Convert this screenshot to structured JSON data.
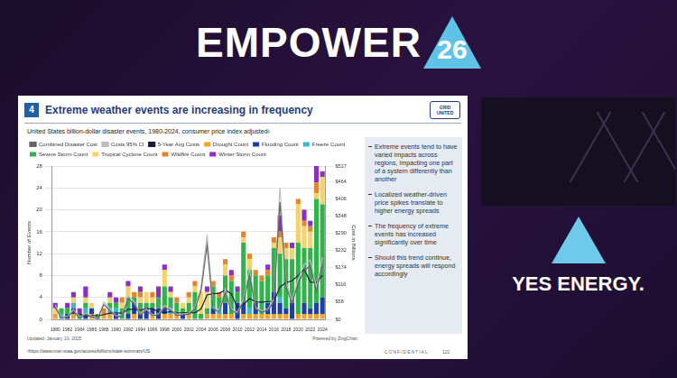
{
  "header": {
    "title": "EMPOWER",
    "number": "26"
  },
  "slide": {
    "number": "4",
    "title": "Extreme weather events are increasing in frequency",
    "logo": "GRID UNITED",
    "bullets": [
      "Extreme events tend to have varied impacts across regions, impacting one part of a system differently than another",
      "Localized weather-driven price spikes translate to higher energy spreads",
      "The frequency of extreme events has increased significantly over time",
      "Should this trend continue, energy spreads will respond accordingly"
    ],
    "updated": "Updated: January 10, 2025",
    "powered": "Powered by ZingChart",
    "footnote": "¹https://www.ncei.noaa.gov/access/billions/state-summary/US",
    "confidential": "CONFIDENTIAL",
    "page": "122"
  },
  "sponsor": "YES ENERGY.",
  "chart_data": {
    "type": "bar",
    "title": "United States billion-dollar disaster events, 1980-2024, consumer price index adjusted¹",
    "y_label": "Number of Events",
    "y2_label": "Cost in Billions",
    "categories": [
      "1980",
      null,
      "1982",
      null,
      "1984",
      null,
      "1986",
      null,
      "1988",
      null,
      "1990",
      null,
      "1992",
      null,
      "1994",
      null,
      "1996",
      null,
      "1998",
      null,
      "2000",
      null,
      "2002",
      null,
      "2004",
      null,
      "2006",
      null,
      "2008",
      null,
      "2010",
      null,
      "2012",
      null,
      "2014",
      null,
      "2016",
      null,
      "2018",
      null,
      "2020",
      null,
      "2022",
      null,
      "2024"
    ],
    "series": [
      {
        "name": "Drought Count",
        "color": "#f0a22e",
        "values": [
          1,
          0,
          0,
          1,
          0,
          0,
          1,
          0,
          1,
          1,
          0,
          0,
          0,
          1,
          0,
          0,
          1,
          0,
          1,
          1,
          1,
          0,
          1,
          0,
          0,
          1,
          1,
          1,
          1,
          1,
          0,
          1,
          1,
          1,
          1,
          1,
          1,
          1,
          1,
          0,
          1,
          1,
          1,
          1,
          1
        ]
      },
      {
        "name": "Flooding Count",
        "color": "#1f3fa8",
        "values": [
          0,
          0,
          1,
          1,
          0,
          1,
          1,
          0,
          0,
          0,
          1,
          0,
          1,
          2,
          1,
          2,
          1,
          2,
          1,
          0,
          0,
          1,
          0,
          0,
          0,
          0,
          1,
          0,
          2,
          0,
          3,
          2,
          0,
          2,
          0,
          2,
          4,
          2,
          1,
          3,
          0,
          2,
          1,
          2,
          3
        ]
      },
      {
        "name": "Freeze Count",
        "color": "#3bb6cf",
        "values": [
          0,
          1,
          0,
          1,
          0,
          1,
          0,
          0,
          0,
          1,
          1,
          0,
          0,
          0,
          0,
          0,
          0,
          0,
          0,
          1,
          0,
          0,
          0,
          0,
          0,
          0,
          0,
          1,
          0,
          0,
          0,
          0,
          1,
          0,
          0,
          0,
          0,
          1,
          0,
          0,
          0,
          0,
          0,
          0,
          0
        ]
      },
      {
        "name": "Severe Storm Count",
        "color": "#2fb34a",
        "values": [
          0,
          1,
          1,
          0,
          1,
          1,
          0,
          1,
          0,
          1,
          1,
          2,
          3,
          1,
          2,
          1,
          1,
          2,
          4,
          2,
          2,
          1,
          2,
          5,
          1,
          1,
          4,
          2,
          5,
          6,
          2,
          11,
          7,
          5,
          6,
          5,
          8,
          8,
          9,
          8,
          13,
          10,
          11,
          19,
          17
        ]
      },
      {
        "name": "Tropical Cyclone Count",
        "color": "#f5d36a",
        "values": [
          1,
          0,
          0,
          1,
          0,
          1,
          1,
          0,
          0,
          1,
          0,
          1,
          2,
          0,
          1,
          2,
          1,
          0,
          3,
          1,
          0,
          1,
          1,
          1,
          4,
          3,
          0,
          0,
          2,
          0,
          0,
          1,
          2,
          0,
          0,
          0,
          1,
          3,
          2,
          2,
          7,
          4,
          3,
          1,
          5
        ]
      },
      {
        "name": "Wildfire Count",
        "color": "#e5832f",
        "values": [
          0,
          0,
          0,
          0,
          0,
          0,
          0,
          0,
          1,
          0,
          0,
          1,
          0,
          1,
          1,
          0,
          1,
          0,
          0,
          0,
          1,
          0,
          1,
          1,
          0,
          0,
          1,
          1,
          1,
          1,
          0,
          1,
          1,
          1,
          1,
          1,
          1,
          1,
          1,
          0,
          1,
          1,
          1,
          2,
          0
        ]
      },
      {
        "name": "Winter Storm Count",
        "color": "#8b2fc4",
        "values": [
          1,
          0,
          1,
          1,
          1,
          2,
          0,
          0,
          0,
          1,
          1,
          0,
          1,
          0,
          1,
          0,
          0,
          2,
          1,
          1,
          0,
          0,
          0,
          0,
          0,
          1,
          0,
          0,
          0,
          1,
          1,
          0,
          0,
          0,
          0,
          1,
          0,
          3,
          0,
          1,
          0,
          2,
          1,
          3,
          1
        ]
      },
      {
        "name": "Combined Disaster Cost",
        "color": "#666666",
        "type": "line",
        "axis": "y2",
        "values": [
          40,
          5,
          7,
          28,
          4,
          16,
          8,
          3,
          50,
          30,
          9,
          11,
          70,
          52,
          15,
          30,
          13,
          15,
          40,
          30,
          14,
          15,
          18,
          35,
          95,
          250,
          35,
          25,
          90,
          30,
          20,
          60,
          150,
          35,
          25,
          30,
          60,
          395,
          110,
          55,
          120,
          165,
          180,
          95,
          185
        ]
      },
      {
        "name": "Costs 95% CI",
        "color": "#bdbdbd",
        "type": "line",
        "axis": "y2",
        "values": [
          48,
          8,
          10,
          33,
          6,
          20,
          11,
          5,
          58,
          36,
          12,
          14,
          80,
          60,
          19,
          35,
          16,
          19,
          46,
          35,
          17,
          18,
          22,
          40,
          108,
          285,
          40,
          29,
          103,
          35,
          24,
          68,
          170,
          40,
          29,
          35,
          68,
          445,
          125,
          63,
          135,
          185,
          200,
          108,
          210
        ]
      },
      {
        "name": "5-Year Avg Costs",
        "color": "#1c1c3a",
        "type": "line",
        "axis": "y2",
        "values": [
          null,
          null,
          null,
          null,
          17,
          12,
          13,
          12,
          16,
          21,
          22,
          21,
          34,
          34,
          31,
          36,
          36,
          25,
          23,
          26,
          22,
          22,
          23,
          22,
          35,
          82,
          87,
          88,
          99,
          86,
          40,
          51,
          70,
          59,
          58,
          60,
          60,
          109,
          124,
          130,
          148,
          169,
          126,
          123,
          149
        ]
      }
    ],
    "ylim": [
      0,
      28
    ],
    "yticks": [
      0,
      4,
      8,
      12,
      16,
      20,
      24,
      28
    ],
    "y2lim": [
      0,
      517
    ],
    "y2ticks": [
      {
        "value": 0,
        "label": "$0"
      },
      {
        "value": 58,
        "label": "$58"
      },
      {
        "value": 116,
        "label": "$116"
      },
      {
        "value": 174,
        "label": "$174"
      },
      {
        "value": 232,
        "label": "$232"
      },
      {
        "value": 290,
        "label": "$290"
      },
      {
        "value": 348,
        "label": "$348"
      },
      {
        "value": 406,
        "label": "$406"
      },
      {
        "value": 464,
        "label": "$464"
      },
      {
        "value": 517,
        "label": "$517"
      }
    ],
    "stacked": true,
    "grid": true,
    "legend": "top"
  }
}
